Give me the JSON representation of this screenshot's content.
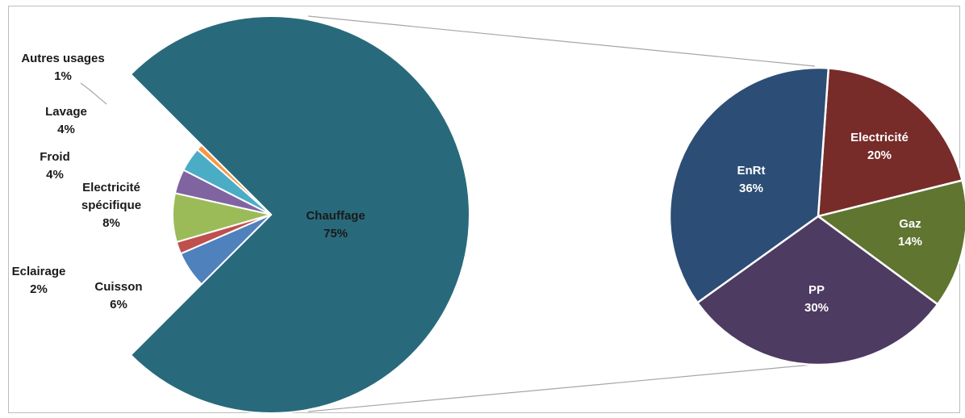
{
  "chart_data": [
    {
      "type": "pie",
      "title": "",
      "slices": [
        {
          "label": "Chauffage",
          "value": 75,
          "value_label": "75%",
          "color": "#286a7b"
        },
        {
          "label": "Autres usages",
          "value": 1,
          "value_label": "1%",
          "color": "#f79646"
        },
        {
          "label": "Lavage",
          "value": 4,
          "value_label": "4%",
          "color": "#4bacc6"
        },
        {
          "label": "Froid",
          "value": 4,
          "value_label": "4%",
          "color": "#8064a2"
        },
        {
          "label": "Electricité spécifique",
          "value": 8,
          "value_label": "8%",
          "color": "#9bbb59"
        },
        {
          "label": "Eclairage",
          "value": 2,
          "value_label": "2%",
          "color": "#c0504d"
        },
        {
          "label": "Cuisson",
          "value": 6,
          "value_label": "6%",
          "color": "#4f81bd"
        }
      ]
    },
    {
      "type": "pie",
      "title": "",
      "breakdown_of": "Chauffage",
      "slices": [
        {
          "label": "Electricité",
          "value": 20,
          "value_label": "20%",
          "color": "#772c2a"
        },
        {
          "label": "Gaz",
          "value": 14,
          "value_label": "14%",
          "color": "#5f7530"
        },
        {
          "label": "PP",
          "value": 30,
          "value_label": "30%",
          "color": "#4d3b62"
        },
        {
          "label": "EnRt",
          "value": 36,
          "value_label": "36%",
          "color": "#2c4d75"
        }
      ]
    }
  ]
}
